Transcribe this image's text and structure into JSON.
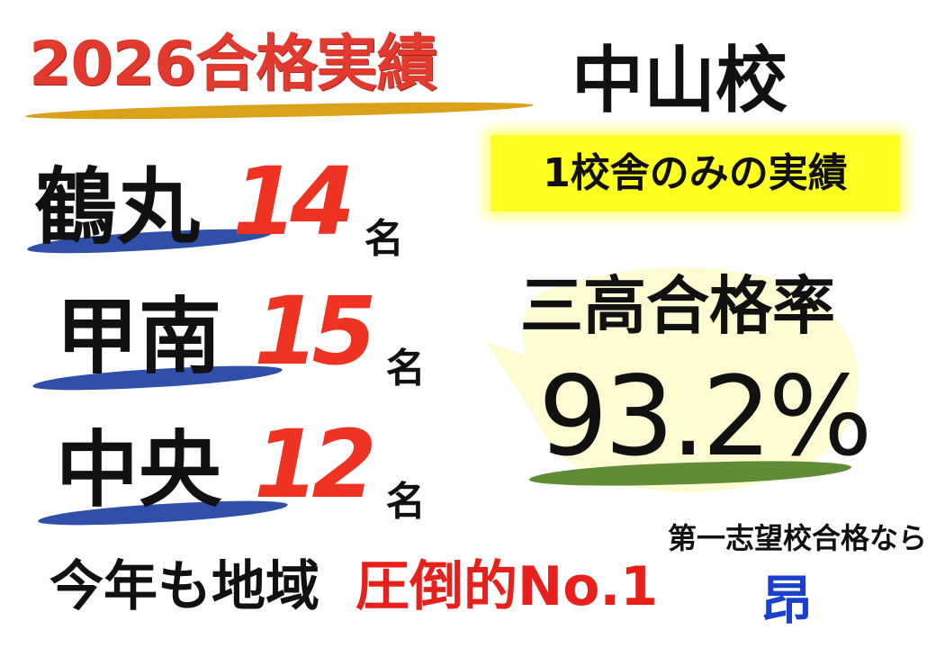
{
  "header": {
    "title": "2026合格実績",
    "campus": "中山校"
  },
  "note": "1校舎のみの実績",
  "results": [
    {
      "school": "鶴丸",
      "count": "14",
      "unit": "名"
    },
    {
      "school": "甲南",
      "count": "15",
      "unit": "名"
    },
    {
      "school": "中央",
      "count": "12",
      "unit": "名"
    }
  ],
  "pass_rate": {
    "label": "三高合格率",
    "value": "93.2%"
  },
  "slogan": {
    "part1": "今年も地域",
    "part2": "圧倒的No.1"
  },
  "tagline": "第一志望校合格なら",
  "brand": "昂",
  "colors": {
    "title_red": "#e23a2e",
    "count_red": "#ee3322",
    "highlight_yellow": "#ffff22",
    "brush_blue": "#2f4fa8",
    "brush_green": "#5f8c35",
    "brush_gold": "#d9a21a",
    "bubble_yellow": "#fdfbd2",
    "brand_blue": "#1b3fcf"
  }
}
